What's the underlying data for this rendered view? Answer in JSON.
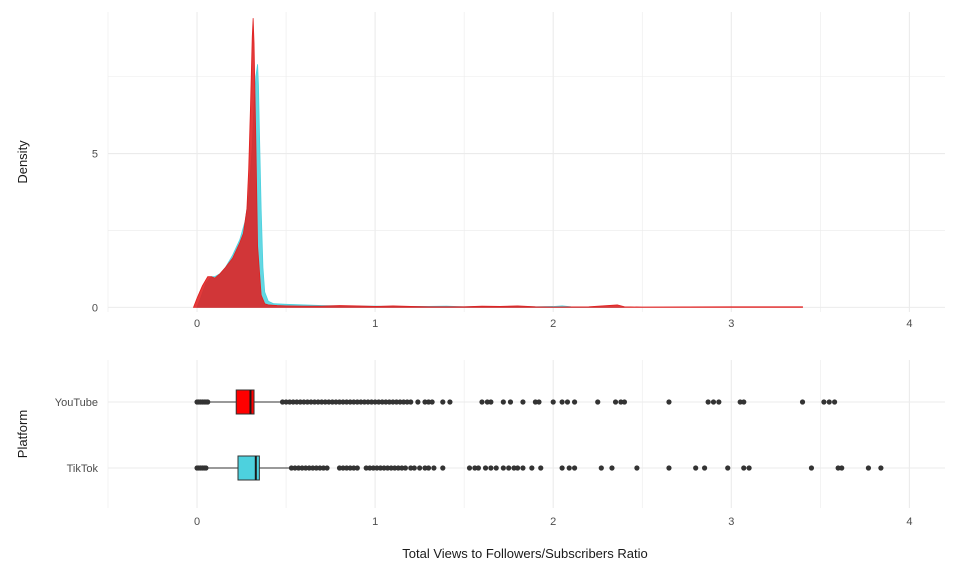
{
  "chart_data": [
    {
      "type": "area",
      "subtype": "density",
      "xlabel": "",
      "ylabel": "Density",
      "xlim": [
        -0.5,
        4.2
      ],
      "ylim": [
        -0.15,
        9.6
      ],
      "x_ticks": [
        0,
        1,
        2,
        3,
        4
      ],
      "y_ticks": [
        0,
        5
      ],
      "grid": true,
      "series": [
        {
          "color": "#4dd1de",
          "x": [
            0.0,
            0.02,
            0.05,
            0.08,
            0.1,
            0.13,
            0.16,
            0.2,
            0.24,
            0.27,
            0.29,
            0.31,
            0.32,
            0.33,
            0.34,
            0.345,
            0.35,
            0.36,
            0.37,
            0.38,
            0.4,
            0.43,
            0.5,
            0.6,
            0.7,
            0.8,
            0.9,
            1.0,
            1.1,
            1.2,
            1.3,
            1.4,
            1.5,
            1.6,
            1.7,
            1.8,
            1.9,
            2.0,
            2.05,
            2.1,
            2.2,
            2.3,
            2.4
          ],
          "y": [
            0.0,
            0.3,
            0.8,
            1.0,
            1.0,
            1.1,
            1.3,
            1.7,
            2.2,
            2.8,
            3.6,
            5.2,
            6.6,
            7.5,
            7.9,
            7.2,
            5.8,
            3.2,
            1.3,
            0.5,
            0.2,
            0.12,
            0.1,
            0.08,
            0.06,
            0.05,
            0.04,
            0.04,
            0.03,
            0.03,
            0.03,
            0.04,
            0.02,
            0.03,
            0.03,
            0.03,
            0.02,
            0.03,
            0.05,
            0.02,
            0.0,
            0.01,
            0.0
          ]
        },
        {
          "color": "#e02020",
          "x": [
            -0.02,
            0.0,
            0.03,
            0.06,
            0.08,
            0.1,
            0.13,
            0.16,
            0.2,
            0.24,
            0.26,
            0.28,
            0.29,
            0.3,
            0.31,
            0.315,
            0.32,
            0.33,
            0.34,
            0.36,
            0.38,
            0.4,
            0.45,
            0.5,
            0.6,
            0.7,
            0.8,
            0.9,
            1.0,
            1.1,
            1.2,
            1.3,
            1.4,
            1.5,
            1.6,
            1.7,
            1.8,
            1.9,
            2.0,
            2.2,
            2.36,
            2.4,
            2.5,
            3.0,
            3.4
          ],
          "y": [
            0.0,
            0.3,
            0.7,
            1.0,
            1.0,
            0.95,
            1.1,
            1.3,
            1.6,
            2.1,
            2.4,
            3.2,
            4.5,
            6.5,
            8.8,
            9.4,
            8.6,
            5.5,
            2.0,
            0.4,
            0.12,
            0.08,
            0.06,
            0.05,
            0.04,
            0.04,
            0.06,
            0.05,
            0.03,
            0.05,
            0.03,
            0.02,
            0.02,
            0.02,
            0.04,
            0.03,
            0.05,
            0.02,
            0.01,
            0.02,
            0.08,
            0.02,
            0.01,
            0.02,
            0.02
          ]
        }
      ]
    },
    {
      "type": "boxplot",
      "orientation": "horizontal",
      "xlabel": "Total Views to Followers/Subscribers Ratio",
      "ylabel": "Platform",
      "xlim": [
        -0.5,
        4.2
      ],
      "x_ticks": [
        0,
        1,
        2,
        3,
        4
      ],
      "categories": [
        "YouTube",
        "TikTok"
      ],
      "grid": true,
      "boxes": [
        {
          "category": "YouTube",
          "color": "#ff0000",
          "whisker_low": 0.02,
          "q1": 0.22,
          "median": 0.3,
          "q3": 0.32,
          "whisker_high": 0.47,
          "outliers": [
            0.0,
            0.01,
            0.02,
            0.03,
            0.04,
            0.05,
            0.06,
            0.48,
            0.5,
            0.52,
            0.54,
            0.56,
            0.58,
            0.6,
            0.62,
            0.64,
            0.66,
            0.68,
            0.7,
            0.72,
            0.74,
            0.76,
            0.78,
            0.8,
            0.82,
            0.84,
            0.86,
            0.88,
            0.9,
            0.92,
            0.94,
            0.96,
            0.98,
            1.0,
            1.02,
            1.04,
            1.06,
            1.08,
            1.1,
            1.12,
            1.14,
            1.16,
            1.18,
            1.2,
            1.24,
            1.28,
            1.3,
            1.32,
            1.38,
            1.42,
            1.6,
            1.63,
            1.65,
            1.72,
            1.76,
            1.83,
            1.9,
            1.92,
            2.0,
            2.05,
            2.08,
            2.12,
            2.25,
            2.35,
            2.38,
            2.4,
            2.65,
            2.87,
            2.9,
            2.93,
            3.05,
            3.07,
            3.4,
            3.52,
            3.55,
            3.58
          ]
        },
        {
          "category": "TikTok",
          "color": "#4dd1de",
          "whisker_low": 0.02,
          "q1": 0.23,
          "median": 0.33,
          "q3": 0.35,
          "whisker_high": 0.52,
          "outliers": [
            0.0,
            0.01,
            0.02,
            0.03,
            0.04,
            0.05,
            0.53,
            0.55,
            0.57,
            0.59,
            0.61,
            0.63,
            0.65,
            0.67,
            0.69,
            0.71,
            0.73,
            0.8,
            0.82,
            0.84,
            0.86,
            0.88,
            0.9,
            0.95,
            0.97,
            0.99,
            1.01,
            1.03,
            1.05,
            1.07,
            1.09,
            1.11,
            1.13,
            1.15,
            1.17,
            1.2,
            1.22,
            1.25,
            1.28,
            1.3,
            1.33,
            1.38,
            1.53,
            1.56,
            1.58,
            1.62,
            1.65,
            1.68,
            1.72,
            1.75,
            1.78,
            1.8,
            1.83,
            1.88,
            1.93,
            2.05,
            2.09,
            2.12,
            2.27,
            2.33,
            2.47,
            2.65,
            2.8,
            2.85,
            2.98,
            3.07,
            3.1,
            3.45,
            3.6,
            3.62,
            3.77,
            3.84
          ]
        }
      ]
    }
  ]
}
